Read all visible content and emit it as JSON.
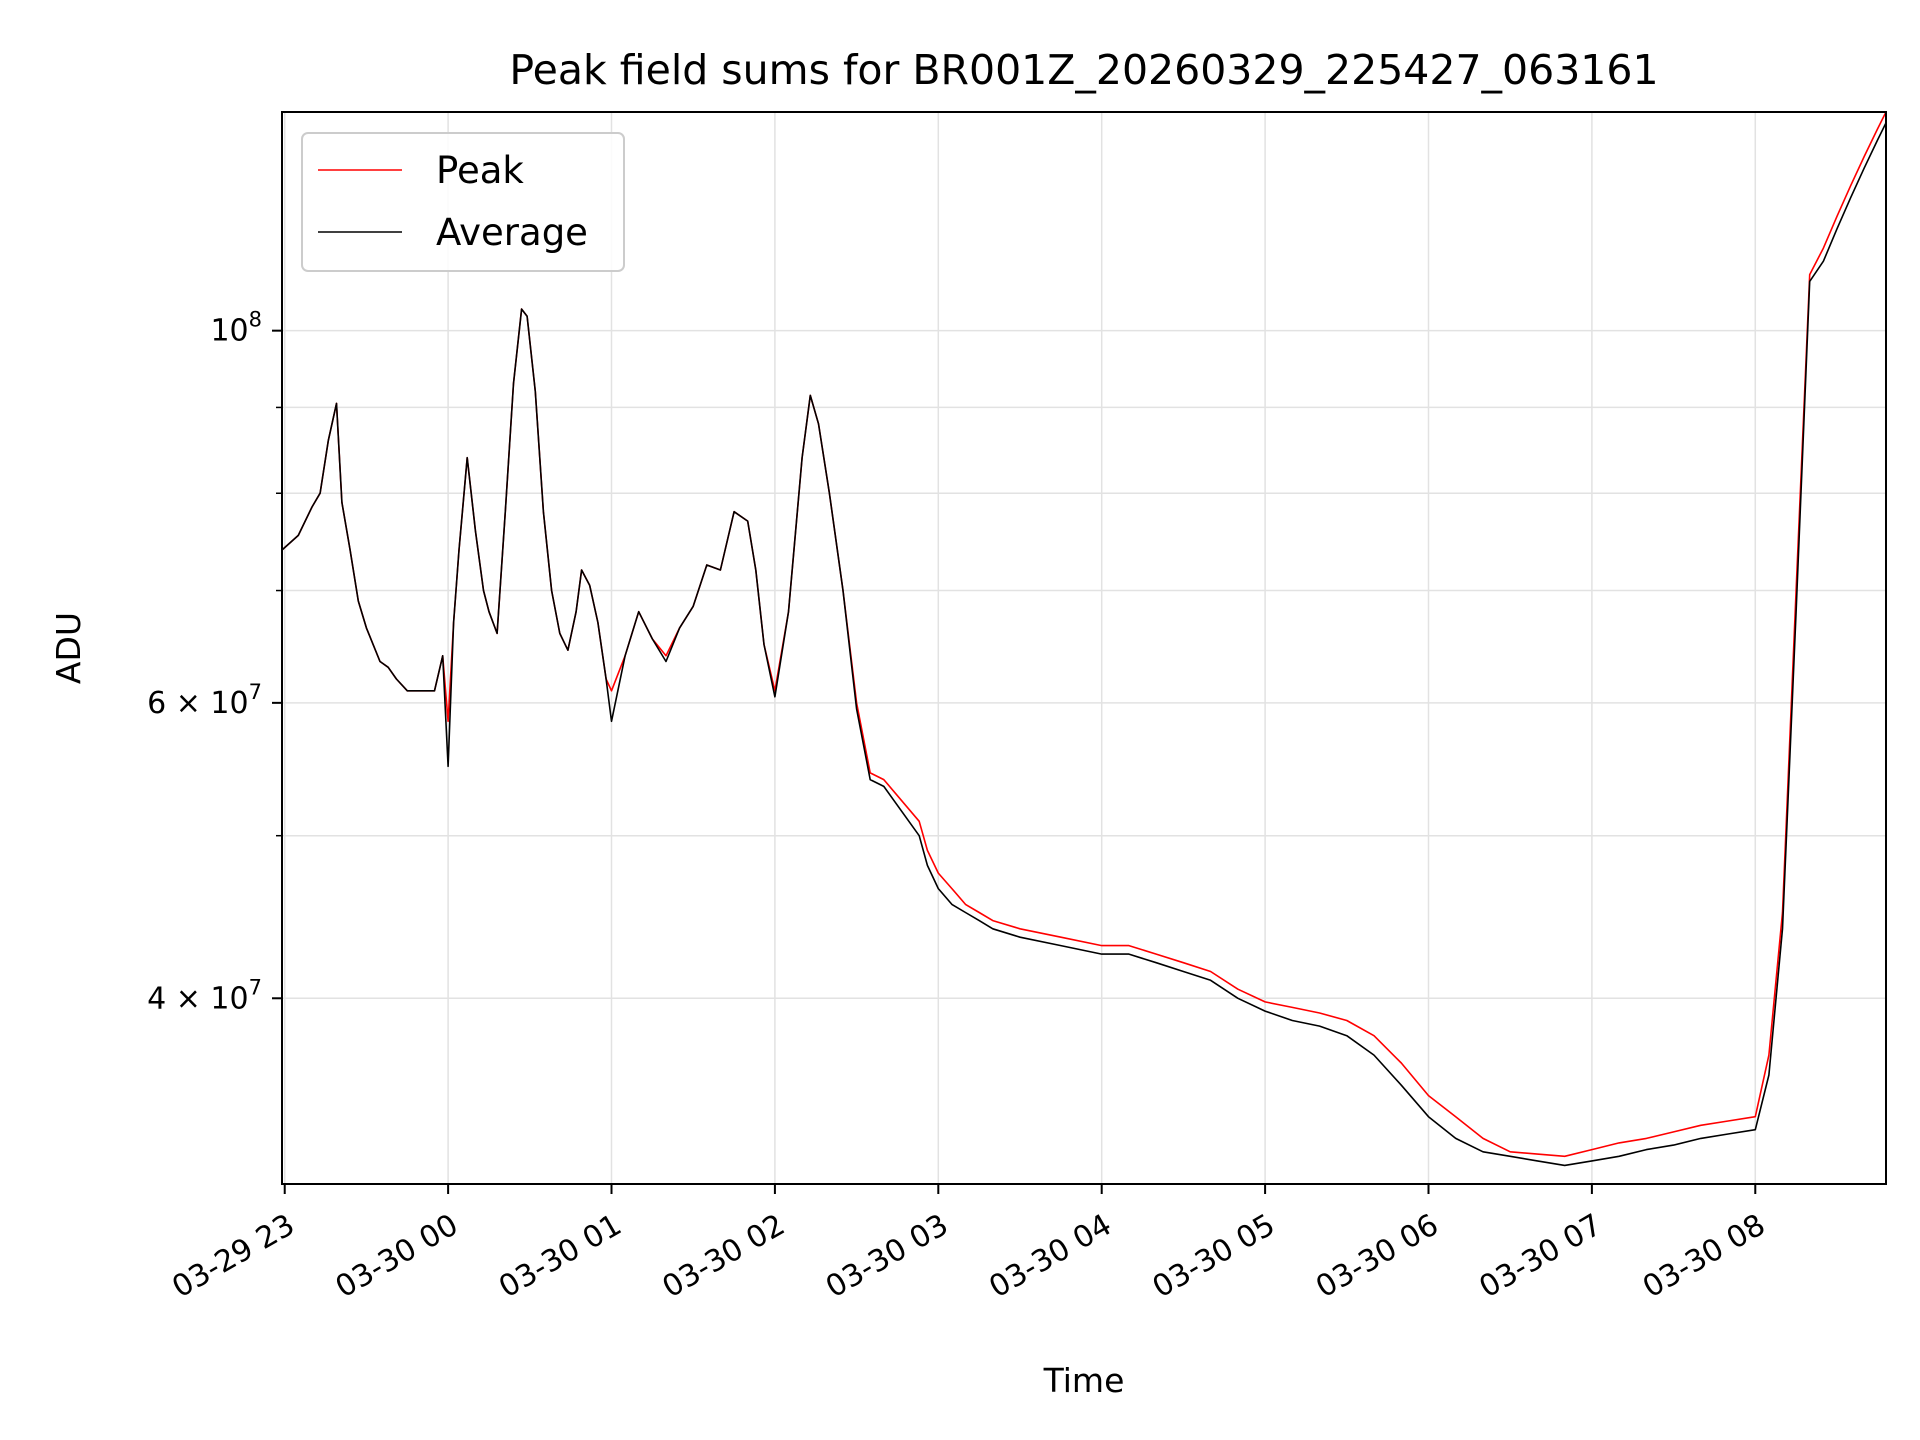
{
  "chart_data": {
    "type": "line",
    "title": "Peak field sums for BR001Z_20260329_225427_063161",
    "xlabel": "Time",
    "ylabel": "ADU",
    "yscale": "log",
    "ylim": [
      31000000,
      135000000
    ],
    "xlim": [
      "2026-03-29 22:59",
      "2026-03-30 08:48"
    ],
    "grid": true,
    "legend_position": "upper-left",
    "x_ticks": [
      {
        "t": "2026-03-29 23:00",
        "label": "03-29 23"
      },
      {
        "t": "2026-03-30 00:00",
        "label": "03-30 00"
      },
      {
        "t": "2026-03-30 01:00",
        "label": "03-30 01"
      },
      {
        "t": "2026-03-30 02:00",
        "label": "03-30 02"
      },
      {
        "t": "2026-03-30 03:00",
        "label": "03-30 03"
      },
      {
        "t": "2026-03-30 04:00",
        "label": "03-30 04"
      },
      {
        "t": "2026-03-30 05:00",
        "label": "03-30 05"
      },
      {
        "t": "2026-03-30 06:00",
        "label": "03-30 06"
      },
      {
        "t": "2026-03-30 07:00",
        "label": "03-30 07"
      },
      {
        "t": "2026-03-30 08:00",
        "label": "03-30 08"
      }
    ],
    "y_major_ticks": [
      {
        "v": 40000000,
        "base": "4 × 10",
        "exp": "7"
      },
      {
        "v": 60000000,
        "base": "6 × 10",
        "exp": "7"
      },
      {
        "v": 100000000,
        "base": "10",
        "exp": "8"
      }
    ],
    "y_minor_ticks": [
      50000000,
      70000000,
      80000000,
      90000000
    ],
    "series": [
      {
        "name": "Peak",
        "color": "#ff0000",
        "x": [
          "2026-03-29 22:59",
          "2026-03-29 23:05",
          "2026-03-29 23:10",
          "2026-03-29 23:13",
          "2026-03-29 23:16",
          "2026-03-29 23:19",
          "2026-03-29 23:21",
          "2026-03-29 23:24",
          "2026-03-29 23:27",
          "2026-03-29 23:30",
          "2026-03-29 23:35",
          "2026-03-29 23:38",
          "2026-03-29 23:41",
          "2026-03-29 23:45",
          "2026-03-29 23:55",
          "2026-03-29 23:58",
          "2026-03-30 00:00",
          "2026-03-30 00:02",
          "2026-03-30 00:04",
          "2026-03-30 00:07",
          "2026-03-30 00:10",
          "2026-03-30 00:13",
          "2026-03-30 00:15",
          "2026-03-30 00:18",
          "2026-03-30 00:21",
          "2026-03-30 00:24",
          "2026-03-30 00:27",
          "2026-03-30 00:29",
          "2026-03-30 00:32",
          "2026-03-30 00:35",
          "2026-03-30 00:38",
          "2026-03-30 00:41",
          "2026-03-30 00:44",
          "2026-03-30 00:47",
          "2026-03-30 00:49",
          "2026-03-30 00:52",
          "2026-03-30 00:55",
          "2026-03-30 00:58",
          "2026-03-30 01:00",
          "2026-03-30 01:05",
          "2026-03-30 01:10",
          "2026-03-30 01:15",
          "2026-03-30 01:20",
          "2026-03-30 01:25",
          "2026-03-30 01:30",
          "2026-03-30 01:35",
          "2026-03-30 01:40",
          "2026-03-30 01:45",
          "2026-03-30 01:50",
          "2026-03-30 01:53",
          "2026-03-30 01:56",
          "2026-03-30 02:00",
          "2026-03-30 02:05",
          "2026-03-30 02:10",
          "2026-03-30 02:13",
          "2026-03-30 02:16",
          "2026-03-30 02:20",
          "2026-03-30 02:25",
          "2026-03-30 02:30",
          "2026-03-30 02:35",
          "2026-03-30 02:40",
          "2026-03-30 02:53",
          "2026-03-30 02:56",
          "2026-03-30 03:00",
          "2026-03-30 03:05",
          "2026-03-30 03:10",
          "2026-03-30 03:15",
          "2026-03-30 03:20",
          "2026-03-30 03:30",
          "2026-03-30 03:45",
          "2026-03-30 04:00",
          "2026-03-30 04:10",
          "2026-03-30 04:20",
          "2026-03-30 04:30",
          "2026-03-30 04:40",
          "2026-03-30 04:50",
          "2026-03-30 05:00",
          "2026-03-30 05:10",
          "2026-03-30 05:20",
          "2026-03-30 05:30",
          "2026-03-30 05:40",
          "2026-03-30 05:50",
          "2026-03-30 06:00",
          "2026-03-30 06:10",
          "2026-03-30 06:20",
          "2026-03-30 06:30",
          "2026-03-30 06:40",
          "2026-03-30 06:50",
          "2026-03-30 07:00",
          "2026-03-30 07:10",
          "2026-03-30 07:20",
          "2026-03-30 07:30",
          "2026-03-30 07:40",
          "2026-03-30 07:50",
          "2026-03-30 08:00",
          "2026-03-30 08:05",
          "2026-03-30 08:10",
          "2026-03-30 08:15",
          "2026-03-30 08:20",
          "2026-03-30 08:25",
          "2026-03-30 08:30",
          "2026-03-30 08:35",
          "2026-03-30 08:40",
          "2026-03-30 08:45",
          "2026-03-30 08:48"
        ],
        "y": [
          74000000,
          75500000,
          78500000,
          80000000,
          86000000,
          90500000,
          79000000,
          74000000,
          69000000,
          66500000,
          63500000,
          63000000,
          62000000,
          61000000,
          61000000,
          64000000,
          58500000,
          67000000,
          74000000,
          84000000,
          76000000,
          70000000,
          68000000,
          66000000,
          78000000,
          93000000,
          103000000,
          102000000,
          92000000,
          78000000,
          70000000,
          66000000,
          64500000,
          68000000,
          72000000,
          70500000,
          67000000,
          62000000,
          61000000,
          64000000,
          68000000,
          65500000,
          64000000,
          66500000,
          68500000,
          72500000,
          72000000,
          78000000,
          77000000,
          72000000,
          65000000,
          61000000,
          68000000,
          84000000,
          91500000,
          88000000,
          80000000,
          70000000,
          60000000,
          54500000,
          54000000,
          51000000,
          49000000,
          47500000,
          46500000,
          45500000,
          45000000,
          44500000,
          44000000,
          43500000,
          43000000,
          43000000,
          42500000,
          42000000,
          41500000,
          40500000,
          39800000,
          39500000,
          39200000,
          38800000,
          38000000,
          36600000,
          35000000,
          34000000,
          33000000,
          32400000,
          32300000,
          32200000,
          32500000,
          32800000,
          33000000,
          33300000,
          33600000,
          33800000,
          34000000,
          37000000,
          45000000,
          70000000,
          108000000,
          112000000,
          117000000,
          122000000,
          127000000,
          132000000,
          135000000
        ]
      },
      {
        "name": "Average",
        "color": "#000000",
        "x": [
          "2026-03-29 22:59",
          "2026-03-29 23:05",
          "2026-03-29 23:10",
          "2026-03-29 23:13",
          "2026-03-29 23:16",
          "2026-03-29 23:19",
          "2026-03-29 23:21",
          "2026-03-29 23:24",
          "2026-03-29 23:27",
          "2026-03-29 23:30",
          "2026-03-29 23:35",
          "2026-03-29 23:38",
          "2026-03-29 23:41",
          "2026-03-29 23:45",
          "2026-03-29 23:55",
          "2026-03-29 23:58",
          "2026-03-30 00:00",
          "2026-03-30 00:02",
          "2026-03-30 00:04",
          "2026-03-30 00:07",
          "2026-03-30 00:10",
          "2026-03-30 00:13",
          "2026-03-30 00:15",
          "2026-03-30 00:18",
          "2026-03-30 00:21",
          "2026-03-30 00:24",
          "2026-03-30 00:27",
          "2026-03-30 00:29",
          "2026-03-30 00:32",
          "2026-03-30 00:35",
          "2026-03-30 00:38",
          "2026-03-30 00:41",
          "2026-03-30 00:44",
          "2026-03-30 00:47",
          "2026-03-30 00:49",
          "2026-03-30 00:52",
          "2026-03-30 00:55",
          "2026-03-30 00:58",
          "2026-03-30 01:00",
          "2026-03-30 01:05",
          "2026-03-30 01:10",
          "2026-03-30 01:15",
          "2026-03-30 01:20",
          "2026-03-30 01:25",
          "2026-03-30 01:30",
          "2026-03-30 01:35",
          "2026-03-30 01:40",
          "2026-03-30 01:45",
          "2026-03-30 01:50",
          "2026-03-30 01:53",
          "2026-03-30 01:56",
          "2026-03-30 02:00",
          "2026-03-30 02:05",
          "2026-03-30 02:10",
          "2026-03-30 02:13",
          "2026-03-30 02:16",
          "2026-03-30 02:20",
          "2026-03-30 02:25",
          "2026-03-30 02:30",
          "2026-03-30 02:35",
          "2026-03-30 02:40",
          "2026-03-30 02:53",
          "2026-03-30 02:56",
          "2026-03-30 03:00",
          "2026-03-30 03:05",
          "2026-03-30 03:10",
          "2026-03-30 03:15",
          "2026-03-30 03:20",
          "2026-03-30 03:30",
          "2026-03-30 03:45",
          "2026-03-30 04:00",
          "2026-03-30 04:10",
          "2026-03-30 04:20",
          "2026-03-30 04:30",
          "2026-03-30 04:40",
          "2026-03-30 04:50",
          "2026-03-30 05:00",
          "2026-03-30 05:10",
          "2026-03-30 05:20",
          "2026-03-30 05:30",
          "2026-03-30 05:40",
          "2026-03-30 05:50",
          "2026-03-30 06:00",
          "2026-03-30 06:10",
          "2026-03-30 06:20",
          "2026-03-30 06:30",
          "2026-03-30 06:40",
          "2026-03-30 06:50",
          "2026-03-30 07:00",
          "2026-03-30 07:10",
          "2026-03-30 07:20",
          "2026-03-30 07:30",
          "2026-03-30 07:40",
          "2026-03-30 07:50",
          "2026-03-30 08:00",
          "2026-03-30 08:05",
          "2026-03-30 08:10",
          "2026-03-30 08:15",
          "2026-03-30 08:20",
          "2026-03-30 08:25",
          "2026-03-30 08:30",
          "2026-03-30 08:35",
          "2026-03-30 08:40",
          "2026-03-30 08:45",
          "2026-03-30 08:48"
        ],
        "y": [
          74000000,
          75500000,
          78500000,
          80000000,
          86000000,
          90500000,
          79000000,
          74000000,
          69000000,
          66500000,
          63500000,
          63000000,
          62000000,
          61000000,
          61000000,
          64000000,
          55000000,
          67000000,
          74000000,
          84000000,
          76000000,
          70000000,
          68000000,
          66000000,
          78000000,
          93000000,
          103000000,
          102000000,
          92000000,
          78000000,
          70000000,
          66000000,
          64500000,
          68000000,
          72000000,
          70500000,
          67000000,
          62000000,
          58500000,
          64000000,
          68000000,
          65500000,
          63500000,
          66500000,
          68500000,
          72500000,
          72000000,
          78000000,
          77000000,
          72000000,
          65000000,
          60500000,
          68000000,
          84000000,
          91500000,
          88000000,
          80000000,
          70000000,
          59500000,
          54000000,
          53500000,
          50000000,
          48000000,
          46500000,
          45500000,
          45000000,
          44500000,
          44000000,
          43500000,
          43000000,
          42500000,
          42500000,
          42000000,
          41500000,
          41000000,
          40000000,
          39300000,
          38800000,
          38500000,
          38000000,
          37000000,
          35500000,
          34000000,
          33000000,
          32400000,
          32200000,
          32000000,
          31800000,
          32000000,
          32200000,
          32500000,
          32700000,
          33000000,
          33200000,
          33400000,
          36000000,
          44000000,
          68000000,
          107000000,
          110000000,
          115000000,
          120000000,
          125000000,
          130000000,
          133000000
        ]
      }
    ]
  }
}
